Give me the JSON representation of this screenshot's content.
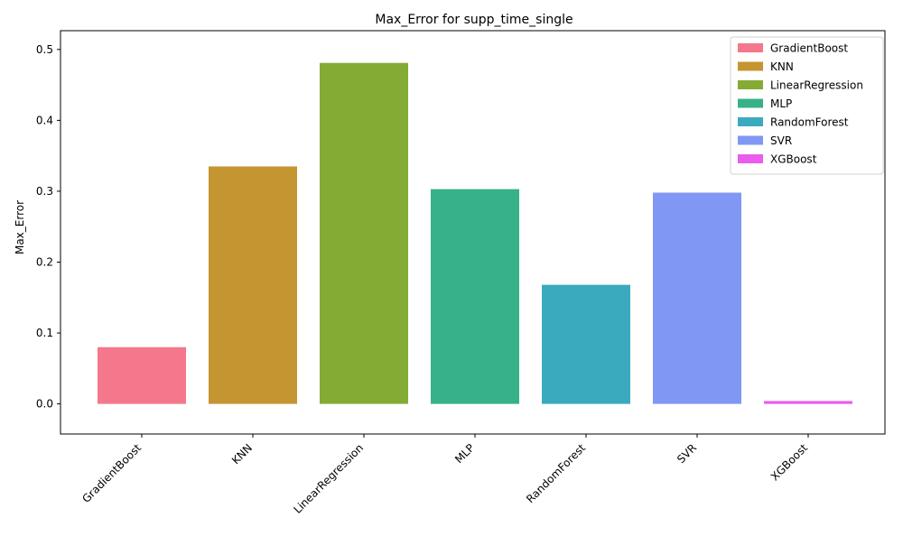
{
  "chart_data": {
    "type": "bar",
    "title": "Max_Error for supp_time_single",
    "xlabel": "",
    "ylabel": "Max_Error",
    "categories": [
      "GradientBoost",
      "KNN",
      "LinearRegression",
      "MLP",
      "RandomForest",
      "SVR",
      "XGBoost"
    ],
    "values": [
      0.08,
      0.335,
      0.481,
      0.303,
      0.168,
      0.298,
      0.004
    ],
    "colors": [
      "#f4778b",
      "#c59532",
      "#84ab34",
      "#37b18a",
      "#3aaabf",
      "#8097f4",
      "#ea5ced"
    ],
    "ylim": [
      -0.0425,
      0.5265
    ],
    "yticks": [
      0.0,
      0.1,
      0.2,
      0.3,
      0.4,
      0.5
    ],
    "ytick_labels": [
      "0.0",
      "0.1",
      "0.2",
      "0.3",
      "0.4",
      "0.5"
    ],
    "legend": {
      "placement": "top-right",
      "entries": [
        "GradientBoost",
        "KNN",
        "LinearRegression",
        "MLP",
        "RandomForest",
        "SVR",
        "XGBoost"
      ]
    },
    "grid": false
  }
}
